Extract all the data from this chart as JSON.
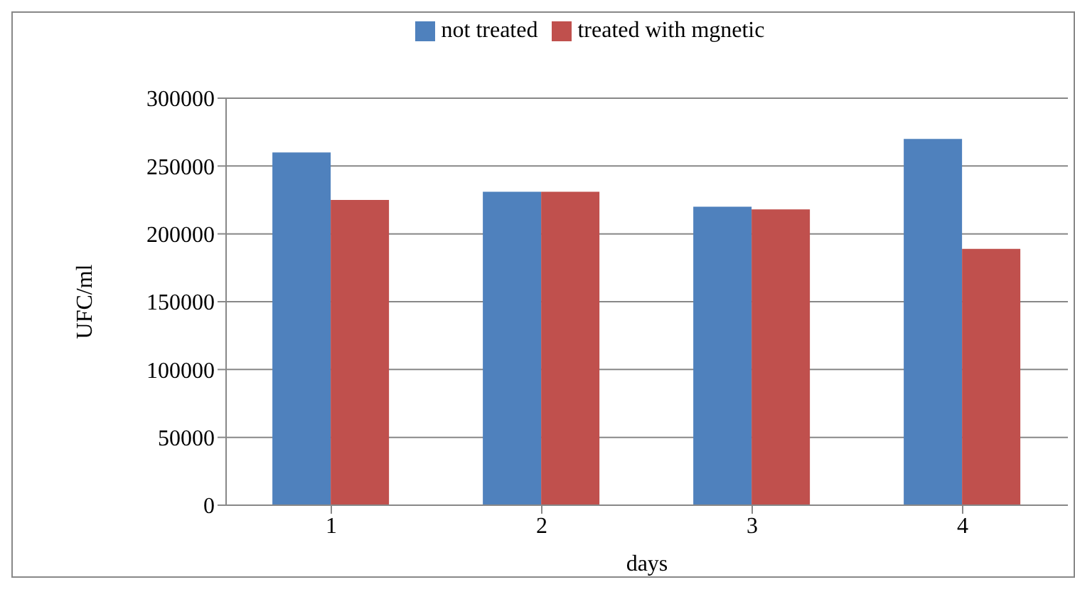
{
  "chart_data": {
    "type": "bar",
    "xlabel": "days",
    "ylabel": "UFC/ml",
    "categories": [
      "1",
      "2",
      "3",
      "4"
    ],
    "series": [
      {
        "name": "not treated",
        "color": "#4f81bd",
        "values": [
          260000,
          231000,
          220000,
          270000
        ]
      },
      {
        "name": "treated with mgnetic",
        "color": "#c0504d",
        "values": [
          225000,
          231000,
          218000,
          189000
        ]
      }
    ],
    "ylim": [
      0,
      300000
    ],
    "yticks": [
      0,
      50000,
      100000,
      150000,
      200000,
      250000,
      300000
    ],
    "grid": "y",
    "legend": "top"
  }
}
